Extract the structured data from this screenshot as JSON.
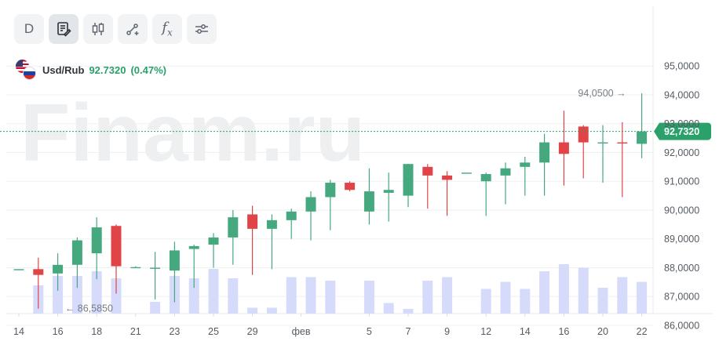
{
  "toolbar": {
    "interval_label": "D",
    "fx_label": "f",
    "fx_sub": "x",
    "icons": [
      "draw-note-icon",
      "candles-icon",
      "trend-line-icon",
      "function-icon",
      "settings-sliders-icon"
    ]
  },
  "legend": {
    "symbol": "Usd/Rub",
    "last_value": "92.7320",
    "change_pct": "(0.47%)"
  },
  "watermark": "Finam.ru",
  "colors": {
    "up": "#45a87f",
    "down": "#e04446",
    "volume": "#d6dbfb",
    "last": "#2aa06a",
    "grid": "#eef0f2",
    "axis": "#555b62"
  },
  "chart_data": {
    "type": "candlestick",
    "y_axis": {
      "min": 85.6,
      "max": 95.3,
      "ticks": [
        "86,0000",
        "87,0000",
        "88,0000",
        "89,0000",
        "90,0000",
        "91,0000",
        "92,0000",
        "93,0000",
        "94,0000",
        "95,0000"
      ],
      "position": "right"
    },
    "x_axis_labels": [
      "14",
      "16",
      "18",
      "21",
      "23",
      "25",
      "29",
      "фев",
      "5",
      "7",
      "9",
      "12",
      "14",
      "16",
      "20",
      "22"
    ],
    "last_price_label": "92,7320",
    "last_price": 92.732,
    "max_annotation": "94,0500",
    "min_annotation": "86,5850",
    "candles": [
      {
        "o": 87.95,
        "h": 87.95,
        "l": 87.95,
        "c": 87.95,
        "v": 0
      },
      {
        "o": 87.95,
        "h": 88.35,
        "l": 86.58,
        "c": 87.75,
        "v": 1.2
      },
      {
        "o": 87.8,
        "h": 88.5,
        "l": 87.2,
        "c": 88.1,
        "v": 1.6
      },
      {
        "o": 88.1,
        "h": 89.05,
        "l": 87.3,
        "c": 88.95,
        "v": 1.6
      },
      {
        "o": 88.5,
        "h": 89.75,
        "l": 87.6,
        "c": 89.4,
        "v": 1.8
      },
      {
        "o": 89.45,
        "h": 89.5,
        "l": 87.1,
        "c": 88.05,
        "v": 1.5
      },
      {
        "o": 88.0,
        "h": 88.05,
        "l": 88.0,
        "c": 88.02,
        "v": 0
      },
      {
        "o": 88.0,
        "h": 88.55,
        "l": 86.9,
        "c": 88.0,
        "v": 0.5
      },
      {
        "o": 87.9,
        "h": 88.9,
        "l": 86.8,
        "c": 88.6,
        "v": 1.6
      },
      {
        "o": 88.65,
        "h": 88.8,
        "l": 87.3,
        "c": 88.75,
        "v": 1.5
      },
      {
        "o": 88.8,
        "h": 89.2,
        "l": 88.0,
        "c": 89.05,
        "v": 1.9
      },
      {
        "o": 89.05,
        "h": 90.0,
        "l": 88.1,
        "c": 89.75,
        "v": 1.5
      },
      {
        "o": 89.85,
        "h": 90.15,
        "l": 87.75,
        "c": 89.35,
        "v": 0.25
      },
      {
        "o": 89.35,
        "h": 89.85,
        "l": 87.95,
        "c": 89.65,
        "v": 0.25
      },
      {
        "o": 89.65,
        "h": 90.05,
        "l": 89.0,
        "c": 89.95,
        "v": 1.55
      },
      {
        "o": 89.95,
        "h": 90.65,
        "l": 88.95,
        "c": 90.45,
        "v": 1.55
      },
      {
        "o": 90.45,
        "h": 91.05,
        "l": 89.3,
        "c": 90.95,
        "v": 1.4
      },
      {
        "o": 90.95,
        "h": 91.0,
        "l": 90.65,
        "c": 90.7,
        "v": 0
      },
      {
        "o": 89.95,
        "h": 91.45,
        "l": 89.5,
        "c": 90.65,
        "v": 1.4
      },
      {
        "o": 90.6,
        "h": 91.3,
        "l": 89.6,
        "c": 90.7,
        "v": 0.45
      },
      {
        "o": 90.5,
        "h": 91.6,
        "l": 90.1,
        "c": 91.6,
        "v": 0.2
      },
      {
        "o": 91.5,
        "h": 91.6,
        "l": 90.05,
        "c": 91.2,
        "v": 1.4
      },
      {
        "o": 91.2,
        "h": 91.35,
        "l": 89.8,
        "c": 91.05,
        "v": 1.55
      },
      {
        "o": 91.3,
        "h": 91.3,
        "l": 91.3,
        "c": 91.3,
        "v": 0
      },
      {
        "o": 91.0,
        "h": 91.3,
        "l": 89.8,
        "c": 91.25,
        "v": 1.05
      },
      {
        "o": 91.2,
        "h": 91.65,
        "l": 90.2,
        "c": 91.45,
        "v": 1.35
      },
      {
        "o": 91.5,
        "h": 91.85,
        "l": 90.5,
        "c": 91.65,
        "v": 1.05
      },
      {
        "o": 91.65,
        "h": 92.65,
        "l": 90.5,
        "c": 92.35,
        "v": 1.8
      },
      {
        "o": 92.35,
        "h": 93.45,
        "l": 90.85,
        "c": 91.95,
        "v": 2.1
      },
      {
        "o": 92.9,
        "h": 92.95,
        "l": 91.1,
        "c": 92.35,
        "v": 1.95
      },
      {
        "o": 92.35,
        "h": 92.95,
        "l": 90.95,
        "c": 92.35,
        "v": 1.1
      },
      {
        "o": 92.35,
        "h": 93.05,
        "l": 90.45,
        "c": 92.32,
        "v": 1.55
      },
      {
        "o": 92.3,
        "h": 94.05,
        "l": 91.8,
        "c": 92.73,
        "v": 1.35
      }
    ]
  }
}
